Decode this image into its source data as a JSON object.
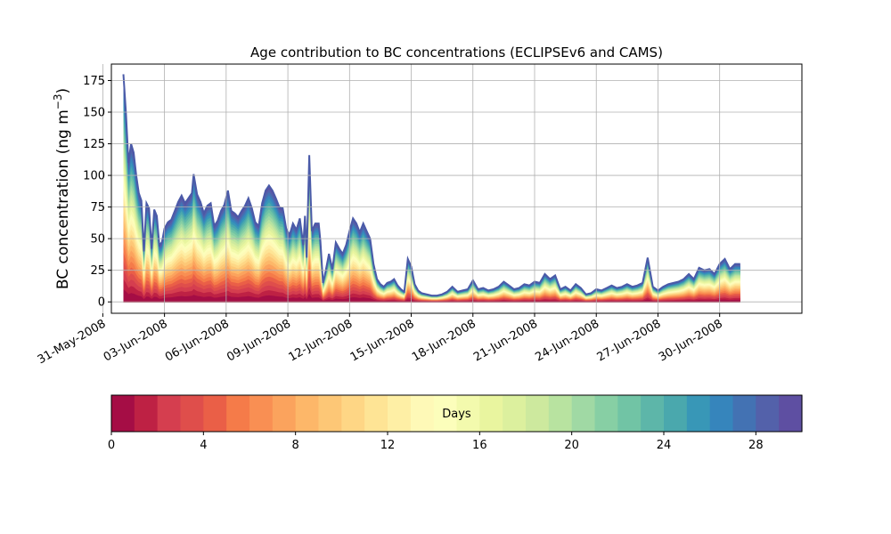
{
  "chart_data": {
    "type": "area",
    "title": "Age contribution to BC concentrations (ECLIPSEv6 and CAMS)",
    "ylabel_text": "BC concentration (ng m",
    "ylabel_sup": "−3",
    "ylabel_close": ")",
    "xlabel": "",
    "grid": true,
    "stacked": true,
    "x_unit": "date",
    "xlim": [
      "2008-05-31T10:00",
      "2008-07-04T00:00"
    ],
    "ylim": [
      -9,
      188
    ],
    "y_ticks": [
      0,
      25,
      50,
      75,
      100,
      125,
      150,
      175
    ],
    "x_ticks": [
      {
        "date": "2008-05-31",
        "label": "31-May-2008"
      },
      {
        "date": "2008-06-03",
        "label": "03-Jun-2008"
      },
      {
        "date": "2008-06-06",
        "label": "06-Jun-2008"
      },
      {
        "date": "2008-06-09",
        "label": "09-Jun-2008"
      },
      {
        "date": "2008-06-12",
        "label": "12-Jun-2008"
      },
      {
        "date": "2008-06-15",
        "label": "15-Jun-2008"
      },
      {
        "date": "2008-06-18",
        "label": "18-Jun-2008"
      },
      {
        "date": "2008-06-21",
        "label": "21-Jun-2008"
      },
      {
        "date": "2008-06-24",
        "label": "24-Jun-2008"
      },
      {
        "date": "2008-06-27",
        "label": "27-Jun-2008"
      },
      {
        "date": "2008-06-30",
        "label": "30-Jun-2008"
      }
    ],
    "total_series": [
      [
        "2008-06-01T00:00",
        180
      ],
      [
        "2008-06-01T03:00",
        150
      ],
      [
        "2008-06-01T06:00",
        110
      ],
      [
        "2008-06-01T09:00",
        125
      ],
      [
        "2008-06-01T12:00",
        118
      ],
      [
        "2008-06-01T15:00",
        100
      ],
      [
        "2008-06-01T18:00",
        86
      ],
      [
        "2008-06-01T21:00",
        80
      ],
      [
        "2008-06-02T00:00",
        40
      ],
      [
        "2008-06-02T03:00",
        78
      ],
      [
        "2008-06-02T06:00",
        74
      ],
      [
        "2008-06-02T09:00",
        42
      ],
      [
        "2008-06-02T12:00",
        73
      ],
      [
        "2008-06-02T15:00",
        68
      ],
      [
        "2008-06-02T18:00",
        45
      ],
      [
        "2008-06-02T21:00",
        47
      ],
      [
        "2008-06-03T00:00",
        58
      ],
      [
        "2008-06-03T04:00",
        63
      ],
      [
        "2008-06-03T08:00",
        65
      ],
      [
        "2008-06-03T12:00",
        72
      ],
      [
        "2008-06-03T16:00",
        79
      ],
      [
        "2008-06-03T20:00",
        84
      ],
      [
        "2008-06-04T00:00",
        78
      ],
      [
        "2008-06-04T04:00",
        82
      ],
      [
        "2008-06-04T08:00",
        86
      ],
      [
        "2008-06-04T10:00",
        101
      ],
      [
        "2008-06-04T14:00",
        85
      ],
      [
        "2008-06-04T18:00",
        79
      ],
      [
        "2008-06-04T22:00",
        70
      ],
      [
        "2008-06-05T02:00",
        76
      ],
      [
        "2008-06-05T06:00",
        78
      ],
      [
        "2008-06-05T10:00",
        60
      ],
      [
        "2008-06-05T14:00",
        64
      ],
      [
        "2008-06-05T18:00",
        72
      ],
      [
        "2008-06-05T22:00",
        77
      ],
      [
        "2008-06-06T02:00",
        88
      ],
      [
        "2008-06-06T06:00",
        72
      ],
      [
        "2008-06-06T10:00",
        70
      ],
      [
        "2008-06-06T14:00",
        67
      ],
      [
        "2008-06-06T18:00",
        72
      ],
      [
        "2008-06-06T22:00",
        76
      ],
      [
        "2008-06-07T02:00",
        82
      ],
      [
        "2008-06-07T06:00",
        74
      ],
      [
        "2008-06-07T10:00",
        63
      ],
      [
        "2008-06-07T14:00",
        60
      ],
      [
        "2008-06-07T18:00",
        78
      ],
      [
        "2008-06-07T22:00",
        88
      ],
      [
        "2008-06-08T02:00",
        92
      ],
      [
        "2008-06-08T06:00",
        88
      ],
      [
        "2008-06-08T10:00",
        82
      ],
      [
        "2008-06-08T14:00",
        75
      ],
      [
        "2008-06-08T18:00",
        74
      ],
      [
        "2008-06-08T22:00",
        58
      ],
      [
        "2008-06-09T02:00",
        53
      ],
      [
        "2008-06-09T06:00",
        62
      ],
      [
        "2008-06-09T10:00",
        57
      ],
      [
        "2008-06-09T14:00",
        66
      ],
      [
        "2008-06-09T18:00",
        45
      ],
      [
        "2008-06-09T20:00",
        68
      ],
      [
        "2008-06-09T22:00",
        35
      ],
      [
        "2008-06-10T01:00",
        116
      ],
      [
        "2008-06-10T04:00",
        56
      ],
      [
        "2008-06-10T08:00",
        62
      ],
      [
        "2008-06-10T12:00",
        62
      ],
      [
        "2008-06-10T14:00",
        48
      ],
      [
        "2008-06-10T17:00",
        15
      ],
      [
        "2008-06-10T20:00",
        24
      ],
      [
        "2008-06-11T00:00",
        38
      ],
      [
        "2008-06-11T04:00",
        26
      ],
      [
        "2008-06-11T08:00",
        47
      ],
      [
        "2008-06-11T12:00",
        42
      ],
      [
        "2008-06-11T16:00",
        38
      ],
      [
        "2008-06-11T20:00",
        45
      ],
      [
        "2008-06-12T00:00",
        56
      ],
      [
        "2008-06-12T04:00",
        66
      ],
      [
        "2008-06-12T08:00",
        62
      ],
      [
        "2008-06-12T12:00",
        55
      ],
      [
        "2008-06-12T16:00",
        62
      ],
      [
        "2008-06-12T20:00",
        56
      ],
      [
        "2008-06-13T00:00",
        50
      ],
      [
        "2008-06-13T04:00",
        30
      ],
      [
        "2008-06-13T08:00",
        18
      ],
      [
        "2008-06-13T12:00",
        14
      ],
      [
        "2008-06-13T16:00",
        12
      ],
      [
        "2008-06-13T20:00",
        15
      ],
      [
        "2008-06-14T00:00",
        16
      ],
      [
        "2008-06-14T04:00",
        18
      ],
      [
        "2008-06-14T08:00",
        13
      ],
      [
        "2008-06-14T12:00",
        10
      ],
      [
        "2008-06-14T16:00",
        8
      ],
      [
        "2008-06-14T20:00",
        34
      ],
      [
        "2008-06-15T00:00",
        28
      ],
      [
        "2008-06-15T04:00",
        14
      ],
      [
        "2008-06-15T08:00",
        9
      ],
      [
        "2008-06-15T12:00",
        7
      ],
      [
        "2008-06-15T18:00",
        6
      ],
      [
        "2008-06-16T00:00",
        5
      ],
      [
        "2008-06-16T06:00",
        5
      ],
      [
        "2008-06-16T12:00",
        6
      ],
      [
        "2008-06-16T18:00",
        8
      ],
      [
        "2008-06-17T00:00",
        12
      ],
      [
        "2008-06-17T06:00",
        8
      ],
      [
        "2008-06-17T12:00",
        9
      ],
      [
        "2008-06-17T18:00",
        10
      ],
      [
        "2008-06-18T00:00",
        17
      ],
      [
        "2008-06-18T06:00",
        10
      ],
      [
        "2008-06-18T12:00",
        11
      ],
      [
        "2008-06-18T18:00",
        9
      ],
      [
        "2008-06-19T00:00",
        10
      ],
      [
        "2008-06-19T06:00",
        12
      ],
      [
        "2008-06-19T12:00",
        16
      ],
      [
        "2008-06-19T18:00",
        13
      ],
      [
        "2008-06-20T00:00",
        10
      ],
      [
        "2008-06-20T06:00",
        11
      ],
      [
        "2008-06-20T12:00",
        14
      ],
      [
        "2008-06-20T18:00",
        13
      ],
      [
        "2008-06-21T00:00",
        16
      ],
      [
        "2008-06-21T06:00",
        15
      ],
      [
        "2008-06-21T12:00",
        22
      ],
      [
        "2008-06-21T18:00",
        18
      ],
      [
        "2008-06-22T00:00",
        21
      ],
      [
        "2008-06-22T06:00",
        10
      ],
      [
        "2008-06-22T12:00",
        12
      ],
      [
        "2008-06-22T18:00",
        9
      ],
      [
        "2008-06-23T00:00",
        14
      ],
      [
        "2008-06-23T06:00",
        11
      ],
      [
        "2008-06-23T12:00",
        6
      ],
      [
        "2008-06-23T18:00",
        7
      ],
      [
        "2008-06-24T00:00",
        10
      ],
      [
        "2008-06-24T06:00",
        9
      ],
      [
        "2008-06-24T12:00",
        11
      ],
      [
        "2008-06-24T18:00",
        13
      ],
      [
        "2008-06-25T00:00",
        11
      ],
      [
        "2008-06-25T06:00",
        12
      ],
      [
        "2008-06-25T12:00",
        14
      ],
      [
        "2008-06-25T18:00",
        12
      ],
      [
        "2008-06-26T00:00",
        13
      ],
      [
        "2008-06-26T06:00",
        15
      ],
      [
        "2008-06-26T12:00",
        35
      ],
      [
        "2008-06-26T18:00",
        12
      ],
      [
        "2008-06-27T00:00",
        9
      ],
      [
        "2008-06-27T06:00",
        12
      ],
      [
        "2008-06-27T12:00",
        14
      ],
      [
        "2008-06-27T18:00",
        15
      ],
      [
        "2008-06-28T00:00",
        16
      ],
      [
        "2008-06-28T06:00",
        18
      ],
      [
        "2008-06-28T12:00",
        22
      ],
      [
        "2008-06-28T18:00",
        18
      ],
      [
        "2008-06-29T00:00",
        27
      ],
      [
        "2008-06-29T06:00",
        25
      ],
      [
        "2008-06-29T12:00",
        26
      ],
      [
        "2008-06-29T18:00",
        22
      ],
      [
        "2008-06-30T00:00",
        30
      ],
      [
        "2008-06-30T06:00",
        34
      ],
      [
        "2008-06-30T12:00",
        26
      ],
      [
        "2008-06-30T18:00",
        30
      ],
      [
        "2008-07-01T00:00",
        30
      ]
    ],
    "colorbar": {
      "label": "Days",
      "min": 0,
      "max": 30,
      "ticks": [
        0,
        4,
        8,
        12,
        16,
        20,
        24,
        28
      ],
      "colors": [
        "#a50d45",
        "#be2144",
        "#d53e4f",
        "#df4e4b",
        "#ea5f47",
        "#f57b49",
        "#f98f53",
        "#fba35d",
        "#fdb769",
        "#fdc776",
        "#fed685",
        "#fee495",
        "#feefa5",
        "#fef9b7",
        "#fcfebb",
        "#f3faad",
        "#e9f59f",
        "#dcf09e",
        "#cde99e",
        "#b8e3a0",
        "#a0d9a4",
        "#87cfa4",
        "#71c4a5",
        "#5db6a9",
        "#4aa8ad",
        "#3897b7",
        "#3685bc",
        "#4372b3",
        "#5361aa",
        "#5e4fa2"
      ]
    }
  }
}
